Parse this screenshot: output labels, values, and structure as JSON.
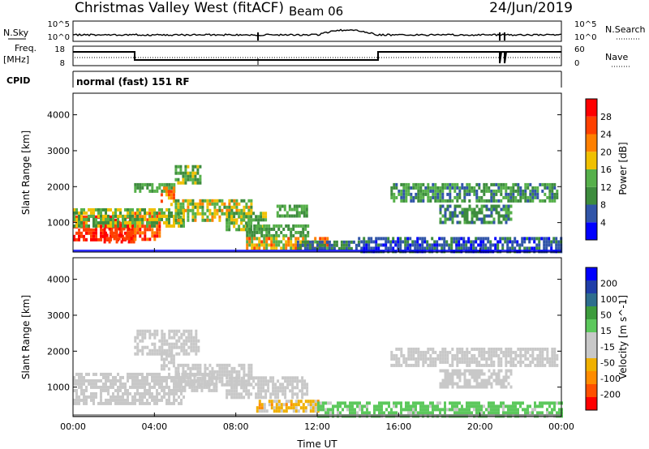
{
  "header": {
    "radar": "Christmas Valley West (fitACF)",
    "beam": "Beam 06",
    "date": "24/Jun/2019"
  },
  "top_panels": {
    "nsky_label": "N.Sky",
    "nsky_ticks": [
      "10^5",
      "10^0"
    ],
    "nsearch_label": "N.Search",
    "nsearch_ticks": [
      "10^5",
      "10^0"
    ],
    "freq_label": "Freq.",
    "freq_unit": "[MHz]",
    "freq_ticks": [
      "18",
      "8"
    ],
    "nave_label": "Nave",
    "nave_ticks": [
      "60",
      "0"
    ],
    "cpid_label": "CPID",
    "cpid_value": "normal (fast) 151 RF"
  },
  "colors": {
    "power": [
      "#0000ff",
      "#3155a8",
      "#3d8c3d",
      "#56b04a",
      "#f0c000",
      "#ff8000",
      "#ff4000",
      "#ff0000"
    ],
    "velocity": [
      "#ff0000",
      "#ff5000",
      "#ff8c00",
      "#f0b000",
      "#c8c8c8",
      "#c8c8c8",
      "#5cc85c",
      "#3d9c3d",
      "#2e6e8e",
      "#1f3ea8",
      "#0000ff"
    ],
    "ground": "#7f7f7f"
  },
  "chart_data": [
    {
      "type": "heatmap",
      "name": "power",
      "ylabel": "Slant Range [km]",
      "yticks": [
        "4000",
        "3000",
        "2000",
        "1000"
      ],
      "ylim": [
        180,
        4600
      ],
      "xlim_hours": [
        0,
        24
      ],
      "colorbar_label": "Power [dB]",
      "colorbar_ticks": [
        "28",
        "24",
        "20",
        "16",
        "12",
        "8",
        "4"
      ],
      "clim": [
        0,
        32
      ],
      "blobs": [
        {
          "h0": 0.0,
          "h1": 3.0,
          "r0": 500,
          "r1": 1200,
          "v0": 24,
          "v1": 30
        },
        {
          "h0": 1.5,
          "h1": 3.0,
          "r0": 500,
          "r1": 1050,
          "v0": 24,
          "v1": 30
        },
        {
          "h0": 3.0,
          "h1": 4.2,
          "r0": 500,
          "r1": 1300,
          "v0": 20,
          "v1": 30
        },
        {
          "h0": 0.0,
          "h1": 5.5,
          "r0": 900,
          "r1": 1400,
          "v0": 8,
          "v1": 20
        },
        {
          "h0": 3.0,
          "h1": 5.0,
          "r0": 1900,
          "r1": 2100,
          "v0": 8,
          "v1": 16
        },
        {
          "h0": 5.0,
          "h1": 6.2,
          "r0": 2100,
          "r1": 2600,
          "v0": 8,
          "v1": 18
        },
        {
          "h0": 4.3,
          "h1": 5.0,
          "r0": 1500,
          "r1": 2000,
          "v0": 18,
          "v1": 28
        },
        {
          "h0": 5.0,
          "h1": 8.8,
          "r0": 1100,
          "r1": 1650,
          "v0": 10,
          "v1": 22
        },
        {
          "h0": 7.5,
          "h1": 9.5,
          "r0": 800,
          "r1": 1300,
          "v0": 8,
          "v1": 18
        },
        {
          "h0": 8.5,
          "h1": 11.5,
          "r0": 600,
          "r1": 950,
          "v0": 8,
          "v1": 16
        },
        {
          "h0": 8.5,
          "h1": 12.5,
          "r0": 300,
          "r1": 600,
          "v0": 12,
          "v1": 26
        },
        {
          "h0": 10.0,
          "h1": 11.5,
          "r0": 1200,
          "r1": 1500,
          "v0": 8,
          "v1": 16
        },
        {
          "h0": 11.0,
          "h1": 14.0,
          "r0": 250,
          "r1": 500,
          "v0": 4,
          "v1": 12
        },
        {
          "h0": 15.6,
          "h1": 23.8,
          "r0": 1600,
          "r1": 2100,
          "v0": 6,
          "v1": 16
        },
        {
          "h0": 18.0,
          "h1": 21.5,
          "r0": 1000,
          "r1": 1500,
          "v0": 6,
          "v1": 14
        },
        {
          "h0": 14.0,
          "h1": 24.0,
          "r0": 200,
          "r1": 600,
          "v0": 2,
          "v1": 10
        }
      ]
    },
    {
      "type": "heatmap",
      "name": "velocity",
      "ylabel": "Slant Range [km]",
      "yticks": [
        "4000",
        "3000",
        "2000",
        "1000"
      ],
      "ylim": [
        180,
        4600
      ],
      "xlabel": "Time UT",
      "xticks": [
        "00:00",
        "04:00",
        "08:00",
        "12:00",
        "16:00",
        "20:00",
        "00:00"
      ],
      "xlim_hours": [
        0,
        24
      ],
      "colorbar_label": "Velocity [m s^-1]",
      "colorbar_ticks": [
        "200",
        "100",
        "50",
        "15",
        "-15",
        "-50",
        "-100",
        "-200"
      ],
      "clim": [
        -250,
        250
      ],
      "blobs": [
        {
          "h0": 0.0,
          "h1": 5.5,
          "r0": 500,
          "r1": 1400,
          "v0": -10,
          "v1": 10
        },
        {
          "h0": 3.0,
          "h1": 6.2,
          "r0": 1900,
          "r1": 2600,
          "v0": -10,
          "v1": 10
        },
        {
          "h0": 4.3,
          "h1": 5.0,
          "r0": 1500,
          "r1": 2000,
          "v0": -45,
          "v1": -20
        },
        {
          "h0": 5.0,
          "h1": 8.8,
          "r0": 1100,
          "r1": 1650,
          "v0": -10,
          "v1": 10
        },
        {
          "h0": 5.2,
          "h1": 7.0,
          "r0": 900,
          "r1": 1400,
          "v0": -45,
          "v1": -25
        },
        {
          "h0": 7.5,
          "h1": 11.5,
          "r0": 700,
          "r1": 1300,
          "v0": -10,
          "v1": 10
        },
        {
          "h0": 9.0,
          "h1": 12.0,
          "r0": 300,
          "r1": 650,
          "v0": -120,
          "v1": -40
        },
        {
          "h0": 12.0,
          "h1": 24.0,
          "r0": 200,
          "r1": 600,
          "v0": 20,
          "v1": 45
        },
        {
          "h0": 15.6,
          "h1": 23.8,
          "r0": 1600,
          "r1": 2100,
          "v0": -10,
          "v1": 10
        },
        {
          "h0": 18.0,
          "h1": 21.5,
          "r0": 1000,
          "r1": 1500,
          "v0": -10,
          "v1": 10
        }
      ]
    }
  ]
}
